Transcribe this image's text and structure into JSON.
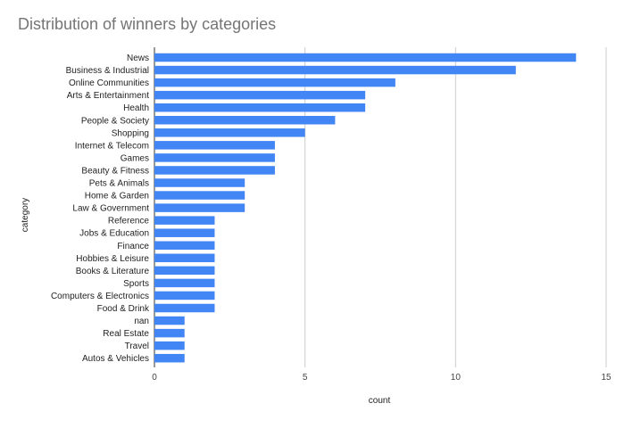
{
  "chart_data": {
    "type": "bar",
    "orientation": "horizontal",
    "title": "Distribution of winners by categories",
    "xlabel": "count",
    "ylabel": "category",
    "xlim": [
      0,
      15
    ],
    "xticks": [
      0,
      5,
      10,
      15
    ],
    "grid": true,
    "legend": "none",
    "bar_color": "#4285f4",
    "categories": [
      "News",
      "Business & Industrial",
      "Online Communities",
      "Arts & Entertainment",
      "Health",
      "People & Society",
      "Shopping",
      "Internet & Telecom",
      "Games",
      "Beauty & Fitness",
      "Pets & Animals",
      "Home & Garden",
      "Law & Government",
      "Reference",
      "Jobs & Education",
      "Finance",
      "Hobbies & Leisure",
      "Books & Literature",
      "Sports",
      "Computers & Electronics",
      "Food & Drink",
      "nan",
      "Real Estate",
      "Travel",
      "Autos & Vehicles"
    ],
    "values": [
      14,
      12,
      8,
      7,
      7,
      6,
      5,
      4,
      4,
      4,
      3,
      3,
      3,
      2,
      2,
      2,
      2,
      2,
      2,
      2,
      2,
      1,
      1,
      1,
      1
    ]
  }
}
